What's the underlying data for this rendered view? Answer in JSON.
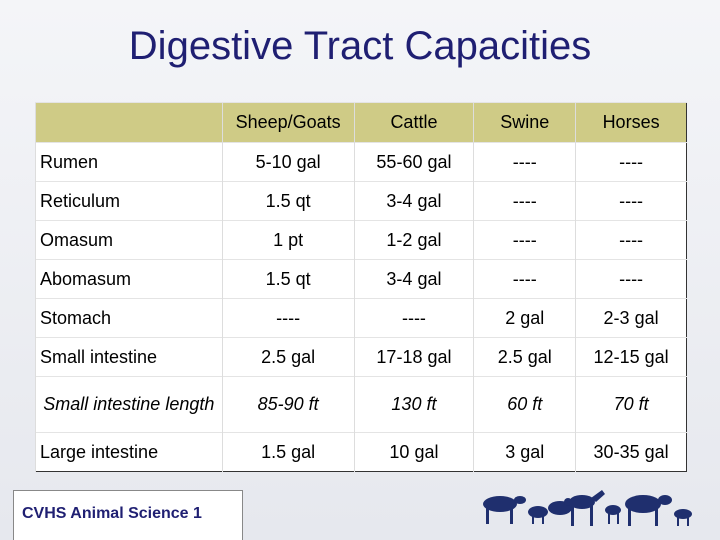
{
  "title": "Digestive Tract Capacities",
  "table": {
    "columns": [
      "Sheep/Goats",
      "Cattle",
      "Swine",
      "Horses"
    ],
    "rows": [
      [
        "Rumen",
        "5-10 gal",
        "55-60 gal",
        "----",
        "----"
      ],
      [
        "Reticulum",
        "1.5 qt",
        "3-4 gal",
        "----",
        "----"
      ],
      [
        "Omasum",
        "1 pt",
        "1-2 gal",
        "----",
        "----"
      ],
      [
        "Abomasum",
        "1.5 qt",
        "3-4 gal",
        "----",
        "----"
      ],
      [
        "Stomach",
        "----",
        "----",
        "2 gal",
        "2-3 gal"
      ],
      [
        "Small intestine",
        "2.5 gal",
        "17-18 gal",
        "2.5 gal",
        "12-15 gal"
      ],
      [
        "Small intestine length",
        "85-90 ft",
        "130 ft",
        "60 ft",
        "70 ft"
      ],
      [
        "Large intestine",
        "1.5 gal",
        "10 gal",
        "3 gal",
        "30-35 gal"
      ]
    ]
  },
  "footer": "CVHS Animal Science 1"
}
